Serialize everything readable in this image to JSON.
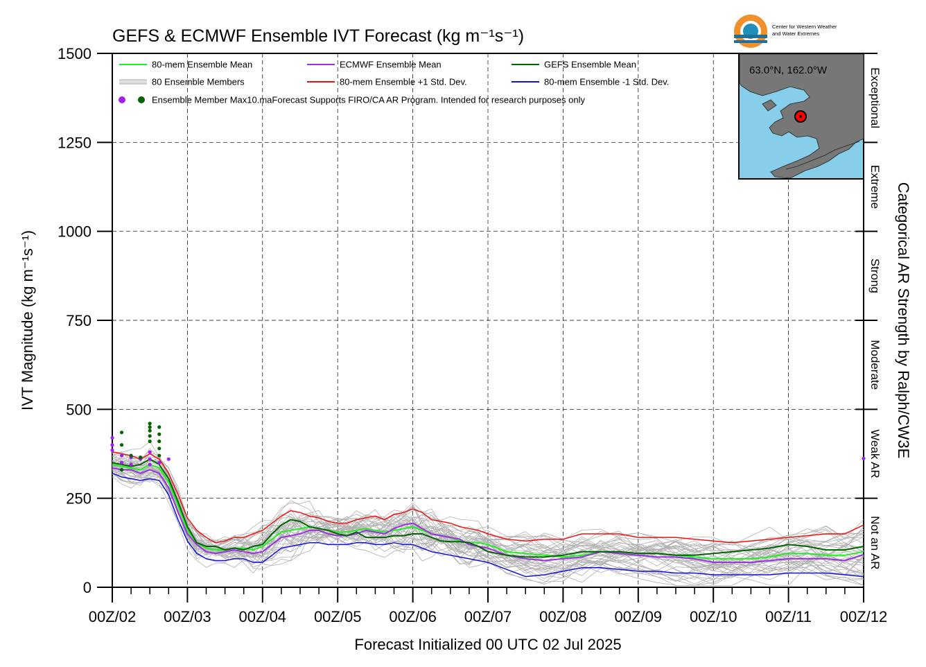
{
  "chart_data": {
    "type": "line",
    "title": "GEFS & ECMWF Ensemble IVT Forecast (kg m⁻¹s⁻¹)",
    "xlabel": "Forecast Initialized 00 UTC 02 Jul 2025",
    "ylabel": "IVT Magnitude (kg m⁻¹s⁻¹)",
    "right_label": "Categorical AR Strength by Ralph/CW3E",
    "ylim": [
      0,
      1500
    ],
    "xlim": [
      0,
      10
    ],
    "grid": true,
    "legend_position": "top-left",
    "x_tick_labels": [
      "00Z/02",
      "00Z/03",
      "00Z/04",
      "00Z/05",
      "00Z/06",
      "00Z/07",
      "00Z/08",
      "00Z/09",
      "00Z/10",
      "00Z/11",
      "00Z/12"
    ],
    "y_ticks": [
      0,
      250,
      500,
      750,
      1000,
      1250,
      1500
    ],
    "categories": [
      {
        "label": "Not an AR",
        "from": 0,
        "to": 250
      },
      {
        "label": "Weak AR",
        "from": 250,
        "to": 500
      },
      {
        "label": "Moderate",
        "from": 500,
        "to": 750
      },
      {
        "label": "Strong",
        "from": 750,
        "to": 1000
      },
      {
        "label": "Extreme",
        "from": 1000,
        "to": 1250
      },
      {
        "label": "Exceptional",
        "from": 1250,
        "to": 1500
      }
    ],
    "legend": [
      {
        "label": "80-mem Ensemble Mean",
        "color": "#22ee22",
        "kind": "line"
      },
      {
        "label": "ECMWF Ensemble Mean",
        "color": "#9b30e0",
        "kind": "line"
      },
      {
        "label": "GEFS Ensemble Mean",
        "color": "#006400",
        "kind": "line"
      },
      {
        "label": "80 Ensemble Members",
        "color": "#b0b0b0",
        "kind": "members"
      },
      {
        "label": "80-mem Ensemble +1 Std. Dev.",
        "color": "#ee1111",
        "kind": "line"
      },
      {
        "label": "80-mem Ensemble -1 Std. Dev.",
        "color": "#1010e0",
        "kind": "line"
      },
      {
        "label": "Ensemble Member Max10.maForecast Supports FIRO/CA AR Program. Intended for research purposes only",
        "color": "#a020f0",
        "kind": "dots",
        "color2": "#006400"
      }
    ],
    "x": [
      0,
      0.125,
      0.25,
      0.375,
      0.5,
      0.625,
      0.75,
      0.875,
      1,
      1.125,
      1.25,
      1.375,
      1.5,
      1.625,
      1.75,
      1.875,
      2,
      2.125,
      2.25,
      2.375,
      2.5,
      2.625,
      2.75,
      2.875,
      3,
      3.125,
      3.25,
      3.375,
      3.5,
      3.625,
      3.75,
      3.875,
      4,
      4.125,
      4.25,
      4.375,
      4.5,
      4.625,
      4.75,
      4.875,
      5,
      5.25,
      5.5,
      5.75,
      6,
      6.25,
      6.5,
      6.75,
      7,
      7.25,
      7.5,
      7.75,
      8,
      8.25,
      8.5,
      8.75,
      9,
      9.25,
      9.5,
      9.75,
      10
    ],
    "series": [
      {
        "name": "80-mem Ensemble Mean",
        "color": "#22ee22",
        "width": 2,
        "values": [
          345,
          340,
          335,
          330,
          345,
          335,
          295,
          230,
          160,
          125,
          110,
          105,
          105,
          110,
          110,
          105,
          115,
          135,
          155,
          160,
          165,
          170,
          165,
          160,
          155,
          155,
          160,
          165,
          160,
          155,
          160,
          165,
          170,
          160,
          150,
          145,
          140,
          130,
          125,
          125,
          120,
          100,
          95,
          90,
          85,
          90,
          100,
          100,
          95,
          95,
          90,
          85,
          80,
          80,
          80,
          85,
          95,
          95,
          90,
          90,
          100
        ]
      },
      {
        "name": "ECMWF Ensemble Mean",
        "color": "#9b30e0",
        "width": 2,
        "values": [
          335,
          330,
          330,
          320,
          330,
          320,
          280,
          210,
          150,
          120,
          100,
          95,
          100,
          105,
          100,
          95,
          100,
          120,
          140,
          145,
          150,
          160,
          160,
          150,
          145,
          145,
          150,
          160,
          155,
          150,
          165,
          175,
          180,
          165,
          150,
          145,
          140,
          135,
          120,
          115,
          110,
          90,
          80,
          75,
          80,
          85,
          100,
          95,
          90,
          85,
          85,
          80,
          70,
          70,
          70,
          75,
          80,
          80,
          80,
          75,
          92
        ]
      },
      {
        "name": "GEFS Ensemble Mean",
        "color": "#006400",
        "width": 2,
        "values": [
          350,
          345,
          340,
          345,
          360,
          345,
          305,
          240,
          170,
          125,
          115,
          115,
          105,
          110,
          105,
          115,
          120,
          150,
          175,
          190,
          185,
          170,
          165,
          160,
          150,
          145,
          155,
          140,
          140,
          140,
          145,
          145,
          150,
          150,
          140,
          130,
          128,
          128,
          125,
          115,
          100,
          90,
          85,
          85,
          90,
          100,
          100,
          100,
          95,
          95,
          90,
          90,
          95,
          100,
          105,
          110,
          120,
          115,
          105,
          105,
          115
        ]
      },
      {
        "name": "80-mem Ensemble +1 Std. Dev.",
        "color": "#ee1111",
        "width": 1.5,
        "values": [
          380,
          375,
          370,
          360,
          375,
          360,
          320,
          260,
          195,
          160,
          140,
          125,
          130,
          140,
          140,
          150,
          160,
          180,
          200,
          215,
          210,
          200,
          195,
          185,
          180,
          180,
          190,
          195,
          200,
          190,
          205,
          210,
          220,
          210,
          190,
          185,
          180,
          170,
          165,
          160,
          150,
          135,
          130,
          135,
          135,
          150,
          150,
          150,
          140,
          140,
          140,
          135,
          130,
          125,
          130,
          135,
          140,
          145,
          150,
          150,
          175
        ]
      },
      {
        "name": "80-mem Ensemble -1 Std. Dev.",
        "color": "#1010e0",
        "width": 1.5,
        "values": [
          320,
          310,
          305,
          300,
          305,
          300,
          260,
          190,
          130,
          95,
          80,
          75,
          75,
          80,
          80,
          70,
          70,
          90,
          110,
          115,
          120,
          125,
          125,
          120,
          120,
          120,
          125,
          125,
          120,
          120,
          125,
          120,
          120,
          110,
          100,
          95,
          90,
          85,
          80,
          75,
          70,
          50,
          30,
          35,
          45,
          55,
          55,
          50,
          45,
          45,
          40,
          40,
          35,
          35,
          35,
          35,
          40,
          40,
          40,
          35,
          30
        ]
      }
    ],
    "member_max_dots": [
      {
        "color": "#a020f0",
        "points": [
          [
            0,
            420
          ],
          [
            0,
            400
          ],
          [
            0,
            385
          ],
          [
            0.125,
            370
          ],
          [
            0.125,
            350
          ],
          [
            0.25,
            365
          ],
          [
            0.25,
            345
          ],
          [
            0.375,
            360
          ],
          [
            0.5,
            380
          ],
          [
            0.5,
            360
          ],
          [
            0.5,
            345
          ],
          [
            0.625,
            350
          ],
          [
            0.75,
            360
          ],
          [
            10,
            362
          ]
        ]
      },
      {
        "color": "#006400",
        "points": [
          [
            0.125,
            435
          ],
          [
            0.125,
            400
          ],
          [
            0.125,
            330
          ],
          [
            0.25,
            370
          ],
          [
            0.375,
            365
          ],
          [
            0.5,
            460
          ],
          [
            0.5,
            450
          ],
          [
            0.5,
            440
          ],
          [
            0.5,
            425
          ],
          [
            0.5,
            410
          ],
          [
            0.625,
            450
          ],
          [
            0.625,
            430
          ],
          [
            0.625,
            410
          ],
          [
            0.625,
            390
          ],
          [
            0.625,
            370
          ]
        ]
      }
    ],
    "inset_map": {
      "label": "63.0°N, 162.0°W",
      "water_color": "#87ceeb",
      "land_color": "#777777",
      "marker_color": "#ff0000"
    }
  },
  "logo": {
    "text_line1": "Center for Western Weather",
    "text_line2": "and Water Extremes"
  }
}
